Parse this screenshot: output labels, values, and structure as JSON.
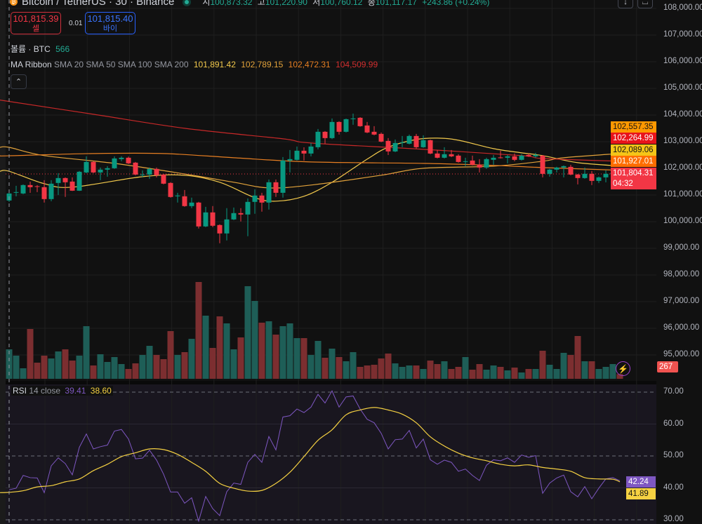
{
  "header": {
    "symbol_title": "Bitcoin / TetherUS · 30 · Binance",
    "open_label": "시",
    "open": "100,873.32",
    "high_label": "고",
    "high": "101,220.90",
    "low_label": "저",
    "low": "100,760.12",
    "close_label": "종",
    "close": "101,117.17",
    "change": "+243.86 (+0.24%)"
  },
  "trade": {
    "sell_price": "101,815.39",
    "sell_label": "셀",
    "spread": "0.01",
    "buy_price": "101,815.40",
    "buy_label": "바이"
  },
  "volume_legend": {
    "label": "볼륨 · BTC",
    "value": "566"
  },
  "ma_legend": {
    "name": "MA Ribbon",
    "params": "SMA 20 SMA 50 SMA 100 SMA 200",
    "values": [
      "101,891.42",
      "102,789.15",
      "102,472.31",
      "104,509.99"
    ]
  },
  "rsi_legend": {
    "name": "RSI",
    "params": "14 close",
    "rsi": "39.41",
    "ma": "38.60"
  },
  "top_buttons": {
    "down_icon": "↓",
    "bracket_icon": "⌴"
  },
  "collapse_icon": "⌃",
  "lightning_icon": "⚡",
  "price_axis": [
    "108,000.00",
    "107,000.00",
    "106,000.00",
    "105,000.00",
    "104,000.00",
    "103,000.00",
    "102,000.00",
    "101,000.00",
    "100,000.00",
    "99,000.00",
    "98,000.00",
    "97,000.00",
    "96,000.00",
    "95,000.00"
  ],
  "rsi_axis": [
    "70.00",
    "60.00",
    "50.00",
    "40.00",
    "30.00"
  ],
  "right_badges": [
    {
      "text": "102,557.35",
      "bg": "#ff9800",
      "fg": "#131313"
    },
    {
      "text": "102,264.99",
      "bg": "#e8141b",
      "fg": "#ffffff"
    },
    {
      "text": "102,089.06",
      "bg": "#f5c518",
      "fg": "#131313"
    },
    {
      "text": "101,927.01",
      "bg": "#ff6d00",
      "fg": "#ffffff"
    }
  ],
  "last_price": {
    "text": "101,804.31",
    "countdown": "04:32",
    "bg": "#f23645"
  },
  "volume_badge": {
    "text": "267",
    "bg": "#f05350"
  },
  "rsi_badges": [
    {
      "text": "42.24",
      "bg": "#7e57c2",
      "fg": "#ffffff"
    },
    {
      "text": "41.89",
      "bg": "#f5d142",
      "fg": "#131313"
    }
  ],
  "colors": {
    "up": "#089981",
    "down": "#f23645",
    "vol_up": "#1e5e57",
    "vol_down": "#7c2e30",
    "sma20": "#f2c94c",
    "sma50": "#e3a33b",
    "sma100": "#e67e22",
    "sma200": "#c62828",
    "rsi": "#7e57c2",
    "rsi_ma": "#f5d142"
  },
  "chart_data": [
    {
      "type": "candlestick",
      "title": "Bitcoin / TetherUS · 30 · Binance",
      "ylim": [
        94600,
        108300
      ],
      "ohlc": [
        [
          100794,
          101110,
          100742,
          101057
        ],
        [
          101083,
          101346,
          100952,
          101110
        ],
        [
          101057,
          101399,
          101030,
          101373
        ],
        [
          101373,
          101504,
          101083,
          101294
        ],
        [
          101330,
          101373,
          101110,
          101320
        ],
        [
          101294,
          101557,
          100716,
          100847
        ],
        [
          100847,
          101557,
          100768,
          101425
        ],
        [
          101452,
          101820,
          101004,
          101636
        ],
        [
          101636,
          101660,
          100926,
          101478
        ],
        [
          101504,
          101662,
          101150,
          101162
        ],
        [
          101162,
          101900,
          101150,
          101872
        ],
        [
          101846,
          102451,
          101820,
          102241
        ],
        [
          102241,
          102270,
          101820,
          101846
        ],
        [
          101846,
          102030,
          101557,
          101952
        ],
        [
          101952,
          102083,
          101688,
          102004
        ],
        [
          102004,
          102451,
          101980,
          102372
        ],
        [
          102346,
          102451,
          102267,
          102398
        ],
        [
          102398,
          102440,
          102160,
          102188
        ],
        [
          102214,
          102240,
          101740,
          101767
        ],
        [
          101750,
          101925,
          101662,
          101767
        ],
        [
          101767,
          102030,
          101610,
          101978
        ],
        [
          101978,
          102030,
          101662,
          101741
        ],
        [
          101767,
          101790,
          101400,
          101425
        ],
        [
          101452,
          101480,
          100900,
          100926
        ],
        [
          100952,
          101083,
          100716,
          100980
        ],
        [
          100952,
          101189,
          100560,
          100584
        ],
        [
          100584,
          100900,
          100505,
          100716
        ],
        [
          100716,
          100742,
          99742,
          99821
        ],
        [
          99821,
          100557,
          99795,
          100347
        ],
        [
          100347,
          100584,
          99795,
          99847
        ],
        [
          99874,
          99900,
          99190,
          99558
        ],
        [
          99558,
          100505,
          99295,
          100084
        ],
        [
          100084,
          100531,
          100058,
          100321
        ],
        [
          100321,
          100505,
          100005,
          100268
        ],
        [
          100268,
          100873,
          99453,
          100742
        ],
        [
          100742,
          101215,
          100295,
          100979
        ],
        [
          100979,
          101083,
          100374,
          100716
        ],
        [
          100716,
          101583,
          100453,
          101478
        ],
        [
          101478,
          101583,
          100926,
          101083
        ],
        [
          101083,
          102425,
          100900,
          102293
        ],
        [
          102293,
          102688,
          101846,
          102346
        ],
        [
          102320,
          102819,
          102293,
          102661
        ],
        [
          102661,
          102790,
          102293,
          102556
        ],
        [
          102556,
          102950,
          102451,
          102819
        ],
        [
          102793,
          103477,
          102714,
          103372
        ],
        [
          103372,
          103398,
          102925,
          103135
        ],
        [
          103135,
          103872,
          103100,
          103740
        ],
        [
          103740,
          103766,
          103267,
          103372
        ],
        [
          103372,
          103870,
          103346,
          103845
        ],
        [
          103845,
          104056,
          103635,
          103872
        ],
        [
          103898,
          103920,
          103560,
          103582
        ],
        [
          103608,
          103740,
          103320,
          103346
        ],
        [
          103372,
          103582,
          103240,
          103267
        ],
        [
          103293,
          103346,
          102980,
          103003
        ],
        [
          103030,
          103135,
          102500,
          102635
        ],
        [
          102635,
          103082,
          102610,
          102951
        ],
        [
          102960,
          103214,
          102793,
          102977
        ],
        [
          102925,
          103267,
          102900,
          103214
        ],
        [
          103214,
          103293,
          102740,
          102793
        ],
        [
          102793,
          103240,
          102770,
          103056
        ],
        [
          103056,
          103080,
          102530,
          102556
        ],
        [
          102556,
          102688,
          102375,
          102398
        ],
        [
          102398,
          102793,
          102372,
          102530
        ],
        [
          102530,
          102688,
          102420,
          102451
        ],
        [
          102477,
          102530,
          102214,
          102240
        ],
        [
          102250,
          102398,
          102083,
          102267
        ],
        [
          102293,
          102477,
          102110,
          102135
        ],
        [
          102135,
          102346,
          101846,
          102030
        ],
        [
          102030,
          102398,
          101978,
          102346
        ],
        [
          102320,
          102504,
          102135,
          102398
        ],
        [
          102410,
          102661,
          102372,
          102398
        ],
        [
          102398,
          102504,
          102188,
          102451
        ],
        [
          102451,
          102556,
          102267,
          102320
        ],
        [
          102320,
          102530,
          102293,
          102477
        ],
        [
          102504,
          102556,
          102430,
          102451
        ],
        [
          102451,
          102583,
          102398,
          102504
        ],
        [
          102477,
          102500,
          101662,
          101794
        ],
        [
          101794,
          101980,
          101688,
          101952
        ],
        [
          101952,
          102060,
          101846,
          102030
        ],
        [
          102030,
          102110,
          101662,
          102083
        ],
        [
          102056,
          102135,
          101740,
          101767
        ],
        [
          101767,
          101790,
          101399,
          101636
        ],
        [
          101636,
          102030,
          101610,
          101794
        ],
        [
          101794,
          101900,
          101373,
          101530
        ],
        [
          101530,
          101690,
          101452,
          101662
        ],
        [
          101662,
          101925,
          101478,
          101794
        ],
        [
          101790,
          101900,
          101662,
          101820
        ],
        [
          101830,
          101850,
          101504,
          101804.31
        ]
      ],
      "volume": [
        1680,
        1320,
        600,
        2840,
        920,
        1320,
        1160,
        1560,
        1680,
        1040,
        1320,
        3000,
        760,
        1400,
        960,
        1240,
        840,
        560,
        880,
        1360,
        1880,
        1360,
        1120,
        2720,
        1360,
        1520,
        2280,
        5520,
        3600,
        1760,
        3560,
        3160,
        1680,
        2360,
        5280,
        4440,
        3200,
        3280,
        2520,
        3000,
        3160,
        2320,
        2320,
        1360,
        2160,
        1200,
        1720,
        1240,
        1000,
        1520,
        680,
        760,
        800,
        1160,
        1440,
        880,
        680,
        760,
        760,
        560,
        1040,
        840,
        1000,
        560,
        680,
        1240,
        520,
        840,
        520,
        760,
        680,
        480,
        640,
        360,
        560,
        560,
        1600,
        800,
        560,
        1480,
        1360,
        2440,
        1000,
        1000,
        560,
        680,
        840,
        267
      ],
      "moving_averages": [
        {
          "name": "SMA 20",
          "points": [
            [
              0,
              101891
            ],
            [
              5,
              101425
            ],
            [
              9,
              101294
            ],
            [
              19,
              101688
            ],
            [
              25,
              101741
            ],
            [
              30,
              101478
            ],
            [
              35,
              100900
            ],
            [
              38,
              100768
            ],
            [
              42,
              100952
            ],
            [
              46,
              101478
            ],
            [
              51,
              102346
            ],
            [
              54,
              102793
            ],
            [
              58,
              103082
            ],
            [
              61,
              103135
            ],
            [
              64,
              103056
            ],
            [
              69,
              102740
            ],
            [
              73,
              102583
            ],
            [
              76,
              102478
            ],
            [
              81,
              102214
            ],
            [
              87,
              102089
            ]
          ]
        },
        {
          "name": "SMA 50",
          "points": [
            [
              0,
              102789
            ],
            [
              5,
              102478
            ],
            [
              15,
              102188
            ],
            [
              25,
              101790
            ],
            [
              32,
              101478
            ],
            [
              37,
              101267
            ],
            [
              43,
              101373
            ],
            [
              53,
              101741
            ],
            [
              59,
              102004
            ],
            [
              69,
              102083
            ],
            [
              76,
              102267
            ],
            [
              79,
              102398
            ],
            [
              87,
              102557
            ]
          ]
        },
        {
          "name": "SMA 100",
          "points": [
            [
              0,
              102472
            ],
            [
              12,
              102556
            ],
            [
              22,
              102556
            ],
            [
              32,
              102398
            ],
            [
              43,
              102240
            ],
            [
              59,
              102188
            ],
            [
              69,
              102110
            ],
            [
              76,
              102030
            ],
            [
              87,
              101927
            ]
          ]
        },
        {
          "name": "SMA 200",
          "points": [
            [
              0,
              104510
            ],
            [
              12,
              104029
            ],
            [
              25,
              103503
            ],
            [
              39,
              103109
            ],
            [
              43,
              102951
            ],
            [
              59,
              102714
            ],
            [
              73,
              102478
            ],
            [
              76,
              102372
            ],
            [
              87,
              102265
            ]
          ]
        }
      ]
    },
    {
      "type": "line",
      "title": "RSI 14 close",
      "ylim": [
        30,
        70
      ],
      "rsi": [
        39.41,
        39.9,
        43.9,
        43.2,
        43.1,
        38.5,
        46.9,
        49.4,
        47.6,
        44.1,
        52.7,
        56.9,
        52.2,
        52.9,
        53.4,
        57.8,
        58.3,
        55.3,
        49.1,
        49.3,
        51.8,
        48.7,
        44.3,
        38.7,
        38.7,
        35.2,
        36.9,
        29.6,
        37.3,
        33.5,
        31.3,
        38.8,
        41.5,
        41.1,
        48.0,
        50.5,
        48.0,
        56.1,
        51.9,
        62.2,
        62.6,
        64.7,
        63.6,
        65.3,
        69.3,
        66.6,
        70.4,
        65.3,
        68.5,
        68.8,
        64.7,
        61.5,
        60.4,
        57.1,
        52.2,
        55.1,
        55.3,
        58.0,
        52.5,
        55.3,
        48.8,
        47.4,
        48.7,
        48.0,
        45.2,
        45.9,
        43.9,
        42.3,
        47.1,
        48.8,
        48.5,
        49.4,
        48.0,
        50.3,
        49.6,
        50.1,
        38.3,
        41.5,
        43.1,
        44.0,
        38.8,
        37.2,
        40.4,
        36.6,
        39.9,
        42.8,
        43.2,
        42.24
      ],
      "rsi_ma": [
        [
          0,
          38.6
        ],
        [
          2,
          39.1
        ],
        [
          4,
          40.3
        ],
        [
          6,
          40.7
        ],
        [
          8,
          41.9
        ],
        [
          10,
          42.8
        ],
        [
          12,
          45.4
        ],
        [
          14,
          47.4
        ],
        [
          16,
          49.8
        ],
        [
          18,
          51.0
        ],
        [
          20,
          52.2
        ],
        [
          22,
          52.0
        ],
        [
          24,
          50.5
        ],
        [
          26,
          48.0
        ],
        [
          28,
          45.2
        ],
        [
          30,
          41.4
        ],
        [
          32,
          39.9
        ],
        [
          34,
          39.0
        ],
        [
          36,
          39.2
        ],
        [
          38,
          41.4
        ],
        [
          40,
          44.9
        ],
        [
          42,
          49.8
        ],
        [
          44,
          54.9
        ],
        [
          46,
          58.2
        ],
        [
          48,
          62.9
        ],
        [
          50,
          64.4
        ],
        [
          52,
          65.2
        ],
        [
          54,
          64.4
        ],
        [
          56,
          63.1
        ],
        [
          58,
          60.4
        ],
        [
          60,
          56.0
        ],
        [
          62,
          53.1
        ],
        [
          64,
          50.9
        ],
        [
          66,
          49.4
        ],
        [
          68,
          48.5
        ],
        [
          70,
          47.4
        ],
        [
          72,
          46.9
        ],
        [
          74,
          47.2
        ],
        [
          76,
          46.4
        ],
        [
          78,
          45.9
        ],
        [
          80,
          45.2
        ],
        [
          82,
          43.2
        ],
        [
          84,
          42.8
        ],
        [
          86,
          42.7
        ],
        [
          87,
          41.89
        ]
      ],
      "levels": [
        70,
        50,
        30
      ]
    }
  ]
}
